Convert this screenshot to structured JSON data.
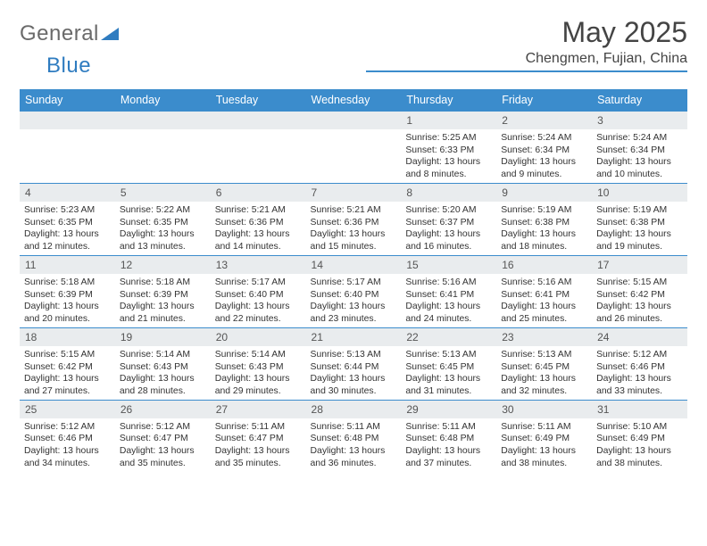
{
  "brand": {
    "part1": "General",
    "part2": "Blue"
  },
  "colors": {
    "accent": "#3b8ccc",
    "header_bg": "#3b8ccc",
    "daynum_bg": "#e9ecee",
    "text": "#333333",
    "logo_gray": "#6a6a6a",
    "logo_blue": "#2f7cc0"
  },
  "header": {
    "month": "May 2025",
    "location": "Chengmen, Fujian, China"
  },
  "weekdays": [
    "Sunday",
    "Monday",
    "Tuesday",
    "Wednesday",
    "Thursday",
    "Friday",
    "Saturday"
  ],
  "calendar": {
    "type": "table",
    "columns": 7,
    "font_size_day": 12,
    "font_size_info": 10.4,
    "cell_border_top_color": "#3b8ccc",
    "weeks": [
      [
        null,
        null,
        null,
        null,
        {
          "n": "1",
          "sr": "5:25 AM",
          "ss": "6:33 PM",
          "dl": "13 hours and 8 minutes."
        },
        {
          "n": "2",
          "sr": "5:24 AM",
          "ss": "6:34 PM",
          "dl": "13 hours and 9 minutes."
        },
        {
          "n": "3",
          "sr": "5:24 AM",
          "ss": "6:34 PM",
          "dl": "13 hours and 10 minutes."
        }
      ],
      [
        {
          "n": "4",
          "sr": "5:23 AM",
          "ss": "6:35 PM",
          "dl": "13 hours and 12 minutes."
        },
        {
          "n": "5",
          "sr": "5:22 AM",
          "ss": "6:35 PM",
          "dl": "13 hours and 13 minutes."
        },
        {
          "n": "6",
          "sr": "5:21 AM",
          "ss": "6:36 PM",
          "dl": "13 hours and 14 minutes."
        },
        {
          "n": "7",
          "sr": "5:21 AM",
          "ss": "6:36 PM",
          "dl": "13 hours and 15 minutes."
        },
        {
          "n": "8",
          "sr": "5:20 AM",
          "ss": "6:37 PM",
          "dl": "13 hours and 16 minutes."
        },
        {
          "n": "9",
          "sr": "5:19 AM",
          "ss": "6:38 PM",
          "dl": "13 hours and 18 minutes."
        },
        {
          "n": "10",
          "sr": "5:19 AM",
          "ss": "6:38 PM",
          "dl": "13 hours and 19 minutes."
        }
      ],
      [
        {
          "n": "11",
          "sr": "5:18 AM",
          "ss": "6:39 PM",
          "dl": "13 hours and 20 minutes."
        },
        {
          "n": "12",
          "sr": "5:18 AM",
          "ss": "6:39 PM",
          "dl": "13 hours and 21 minutes."
        },
        {
          "n": "13",
          "sr": "5:17 AM",
          "ss": "6:40 PM",
          "dl": "13 hours and 22 minutes."
        },
        {
          "n": "14",
          "sr": "5:17 AM",
          "ss": "6:40 PM",
          "dl": "13 hours and 23 minutes."
        },
        {
          "n": "15",
          "sr": "5:16 AM",
          "ss": "6:41 PM",
          "dl": "13 hours and 24 minutes."
        },
        {
          "n": "16",
          "sr": "5:16 AM",
          "ss": "6:41 PM",
          "dl": "13 hours and 25 minutes."
        },
        {
          "n": "17",
          "sr": "5:15 AM",
          "ss": "6:42 PM",
          "dl": "13 hours and 26 minutes."
        }
      ],
      [
        {
          "n": "18",
          "sr": "5:15 AM",
          "ss": "6:42 PM",
          "dl": "13 hours and 27 minutes."
        },
        {
          "n": "19",
          "sr": "5:14 AM",
          "ss": "6:43 PM",
          "dl": "13 hours and 28 minutes."
        },
        {
          "n": "20",
          "sr": "5:14 AM",
          "ss": "6:43 PM",
          "dl": "13 hours and 29 minutes."
        },
        {
          "n": "21",
          "sr": "5:13 AM",
          "ss": "6:44 PM",
          "dl": "13 hours and 30 minutes."
        },
        {
          "n": "22",
          "sr": "5:13 AM",
          "ss": "6:45 PM",
          "dl": "13 hours and 31 minutes."
        },
        {
          "n": "23",
          "sr": "5:13 AM",
          "ss": "6:45 PM",
          "dl": "13 hours and 32 minutes."
        },
        {
          "n": "24",
          "sr": "5:12 AM",
          "ss": "6:46 PM",
          "dl": "13 hours and 33 minutes."
        }
      ],
      [
        {
          "n": "25",
          "sr": "5:12 AM",
          "ss": "6:46 PM",
          "dl": "13 hours and 34 minutes."
        },
        {
          "n": "26",
          "sr": "5:12 AM",
          "ss": "6:47 PM",
          "dl": "13 hours and 35 minutes."
        },
        {
          "n": "27",
          "sr": "5:11 AM",
          "ss": "6:47 PM",
          "dl": "13 hours and 35 minutes."
        },
        {
          "n": "28",
          "sr": "5:11 AM",
          "ss": "6:48 PM",
          "dl": "13 hours and 36 minutes."
        },
        {
          "n": "29",
          "sr": "5:11 AM",
          "ss": "6:48 PM",
          "dl": "13 hours and 37 minutes."
        },
        {
          "n": "30",
          "sr": "5:11 AM",
          "ss": "6:49 PM",
          "dl": "13 hours and 38 minutes."
        },
        {
          "n": "31",
          "sr": "5:10 AM",
          "ss": "6:49 PM",
          "dl": "13 hours and 38 minutes."
        }
      ]
    ],
    "labels": {
      "sunrise": "Sunrise:",
      "sunset": "Sunset:",
      "daylight": "Daylight:"
    }
  }
}
